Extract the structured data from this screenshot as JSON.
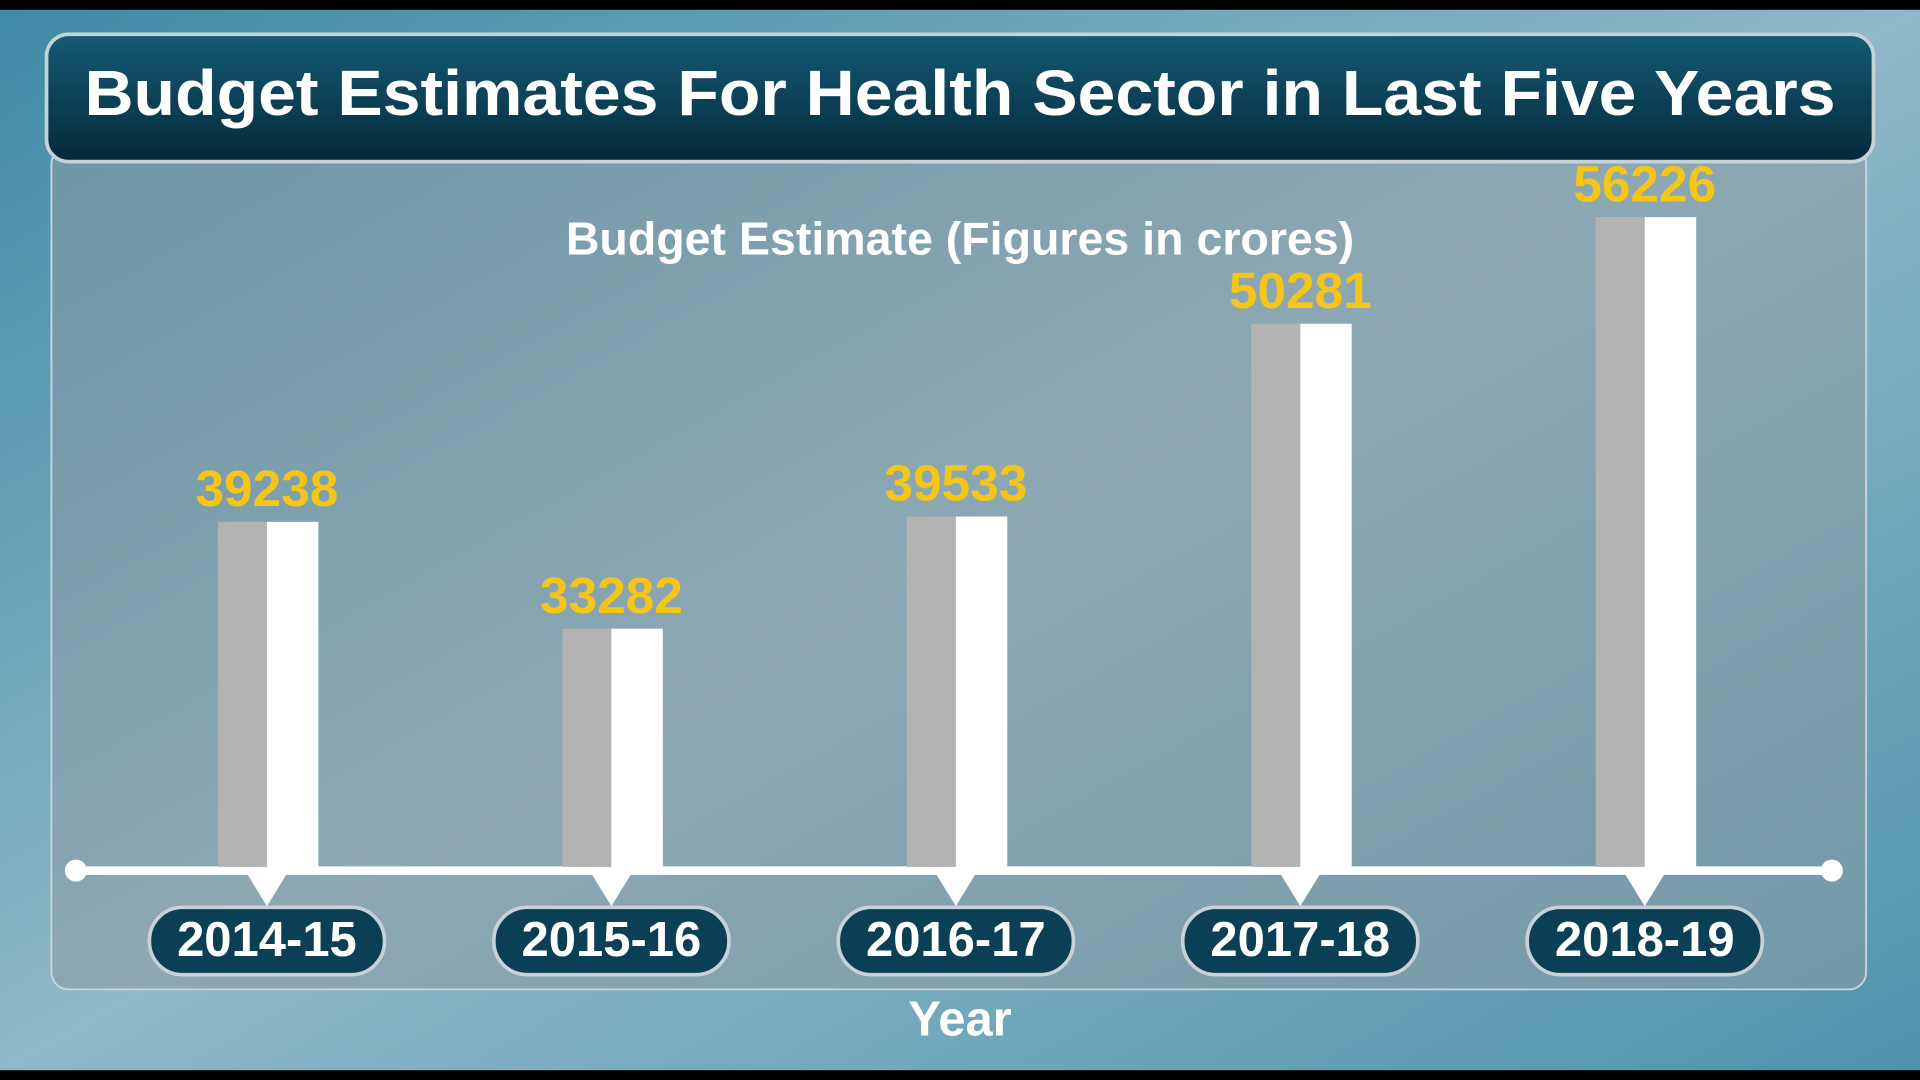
{
  "chart_data": {
    "type": "bar",
    "title": "Budget Estimates For Health Sector in Last Five Years",
    "subtitle": "Budget Estimate (Figures in crores)",
    "x_label": "Year",
    "categories": [
      "2014-15",
      "2015-16",
      "2016-17",
      "2017-18",
      "2018-19"
    ],
    "values": [
      39238,
      33282,
      39533,
      50281,
      56226
    ],
    "color": "#ffffff",
    "value_label_color": "#f5c518",
    "ylim": [
      20000,
      60000
    ]
  }
}
